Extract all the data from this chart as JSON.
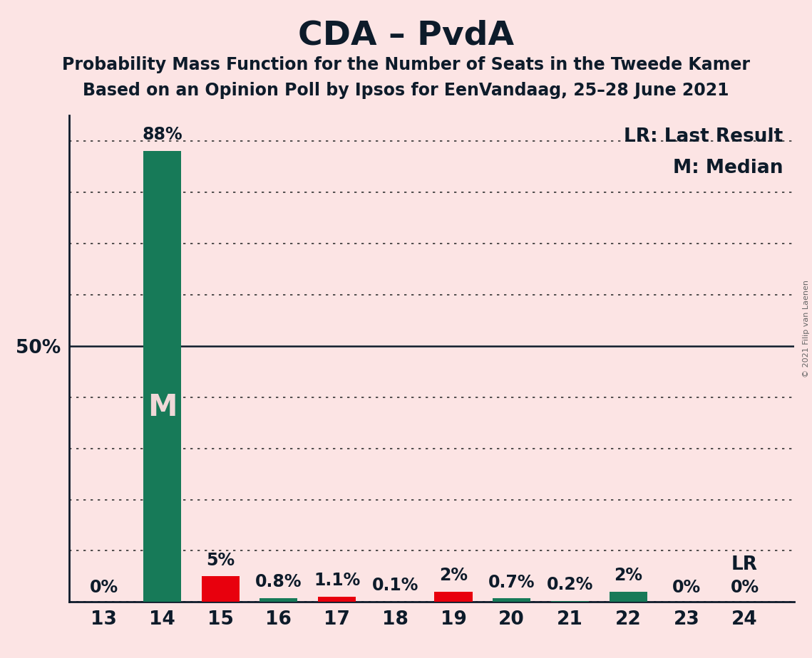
{
  "title": "CDA – PvdA",
  "subtitle1": "Probability Mass Function for the Number of Seats in the Tweede Kamer",
  "subtitle2": "Based on an Opinion Poll by Ipsos for EenVandaag, 25–28 June 2021",
  "copyright": "© 2021 Filip van Laenen",
  "categories": [
    13,
    14,
    15,
    16,
    17,
    18,
    19,
    20,
    21,
    22,
    23,
    24
  ],
  "values": [
    0.0,
    88.0,
    5.0,
    0.8,
    1.1,
    0.1,
    2.0,
    0.7,
    0.2,
    2.0,
    0.0,
    0.0
  ],
  "labels": [
    "0%",
    "88%",
    "5%",
    "0.8%",
    "1.1%",
    "0.1%",
    "2%",
    "0.7%",
    "0.2%",
    "2%",
    "0%",
    "0%"
  ],
  "bar_colors": [
    "#177a58",
    "#177a58",
    "#e8000d",
    "#177a58",
    "#e8000d",
    "#177a58",
    "#e8000d",
    "#177a58",
    "#177a58",
    "#177a58",
    "#177a58",
    "#177a58"
  ],
  "median_bar_idx": 1,
  "lr_bar_idx": 11,
  "lr_label": "LR",
  "median_label": "M",
  "legend_lr": "LR: Last Result",
  "legend_m": "M: Median",
  "ylim_max": 95,
  "background_color": "#fce4e4",
  "bar_width": 0.65,
  "title_fontsize": 34,
  "subtitle_fontsize": 17,
  "tick_fontsize": 19,
  "label_fontsize": 17,
  "legend_fontsize": 19,
  "median_text_color": "#f0d8d8",
  "axis_color": "#0d1b2a",
  "dotted_line_color": "#333333",
  "fifty_line_color": "#0d1b2a",
  "copyright_color": "#666666"
}
